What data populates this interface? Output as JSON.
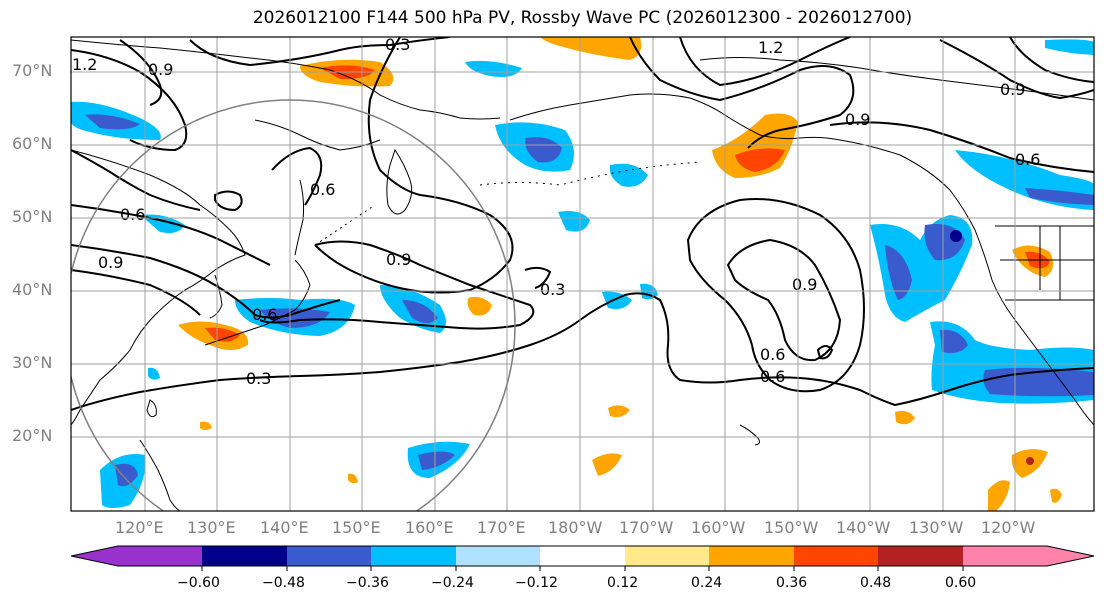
{
  "title": "2026012100 F144 500 hPa PV, Rossby Wave PC (2026012300 - 2026012700)",
  "lat_labels": [
    "70°N",
    "60°N",
    "50°N",
    "40°N",
    "30°N",
    "20°N"
  ],
  "lon_labels": [
    "120°E",
    "130°E",
    "140°E",
    "150°E",
    "160°E",
    "170°E",
    "180°W",
    "170°W",
    "160°W",
    "150°W",
    "140°W",
    "130°W",
    "120°W"
  ],
  "contour_labels": [
    "1.2",
    "0.9",
    "0.3",
    "1.2",
    "0.9",
    "0.9",
    "0.6",
    "0.6",
    "0.9",
    "0.6",
    "0.9",
    "0.3",
    "0.3",
    "0.6",
    "0.9",
    "0.6",
    "0.6"
  ],
  "colorbar": {
    "ticks": [
      "−0.60",
      "−0.48",
      "−0.36",
      "−0.24",
      "−0.12",
      "0.12",
      "0.24",
      "0.36",
      "0.48",
      "0.60"
    ],
    "colors": [
      "#9932cc",
      "#00008b",
      "#3a5bcd",
      "#00bfff",
      "#b0e2ff",
      "#ffffff",
      "#ffe98a",
      "#ffa500",
      "#ff4500",
      "#b22222",
      "#ff82ab"
    ]
  },
  "colors": {
    "neg_dark": "#00008b",
    "neg_mid": "#3a5bcd",
    "neg_light": "#00bfff",
    "pos_light": "#ffe98a",
    "pos_mid": "#ffa500",
    "pos_strong": "#ff4500",
    "pos_dark": "#b22222",
    "grid": "#a0a0a0",
    "circle": "#808080"
  },
  "chart_data": {
    "type": "map",
    "variable": "500 hPa PV contours with Rossby Wave PC shading",
    "lat_range": [
      10,
      75
    ],
    "lon_range": [
      112,
      253
    ],
    "colorbar_levels": [
      -0.6,
      -0.48,
      -0.36,
      -0.24,
      -0.12,
      0.12,
      0.24,
      0.36,
      0.48,
      0.6
    ],
    "contour_levels": [
      0.3,
      0.6,
      0.9,
      1.2
    ]
  }
}
